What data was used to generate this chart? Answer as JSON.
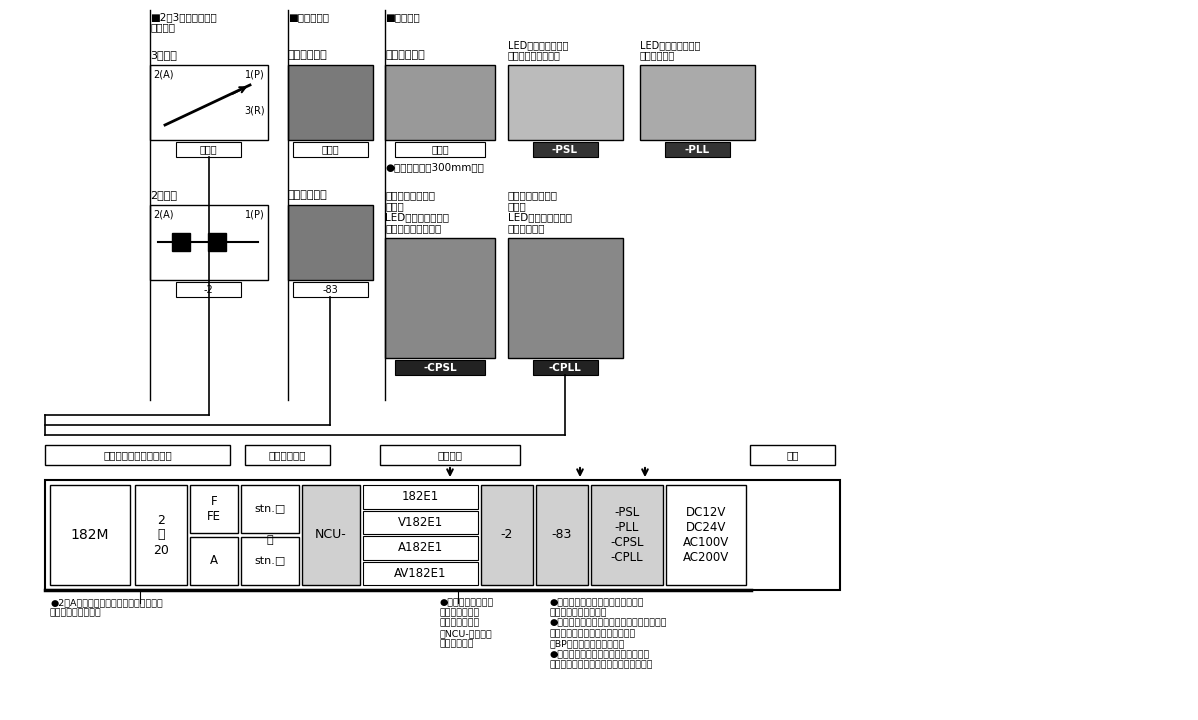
{
  "bg_color": "#ffffff",
  "header_valve": "■2・3ポートバルブ\nポート数",
  "header_manual": "■手動ボタン",
  "header_wiring": "■結線方式",
  "label_3port": "3ポート",
  "label_nonlock": "ノンロック形",
  "label_grommet": "グロメット形",
  "label_led_straight": "LEDインジケータ付\nストレートコネクタ",
  "label_led_elbow": "LEDインジケータ付\nエルコネクタ",
  "code_mukiryu": "無記入",
  "code_psl": "-PSL",
  "code_pll": "-PLL",
  "lead_note": "●リード線長さ300mm標準",
  "label_2port": "2ポート",
  "label_lock": "ロック突出形",
  "label_cpsl": "プラスコモン端子\n結線済\nLEDインジケータ付\nストレートコネクタ",
  "label_cpll": "プラスコモン端子\n結線済\nLEDインジケータ付\nエルコネクタ",
  "code_minus2": "-2",
  "code_minus83": "-83",
  "code_cpsl": "-CPSL",
  "code_cpll": "-CPLL",
  "bottom_manifold_label": "マニホールド形式\n連数",
  "bottom_station_label": "ステーション",
  "bottom_basic_label": "基本形式",
  "bottom_voltage_label": "電圧",
  "box_182M": "182M",
  "box_num": "2\n：\n20",
  "box_fe": "F\nFE",
  "box_a": "A",
  "box_stn1": "stn.□",
  "box_stn2": "stn.□",
  "box_ncu": "NCU-",
  "basic_models": [
    "182E1",
    "V182E1",
    "A182E1",
    "AV182E1"
  ],
  "box_minus2": "-2",
  "box_minus83": "-83",
  "box_wiring": "-PSL\n-PLL\n-CPSL\n-CPLL",
  "box_voltage": "DC12V\nDC24V\nAC100V\nAC200V",
  "fn1": "●2（A）ポート側を手前にして左からの\n　バルブ取付位置。",
  "fn2_bullet": "●ノン・イオン仕様\nを注文する場合\nは基本形式の前\nにNCU-を記入し\nてください。",
  "fn3": "●バルブ形式は、ステーション毎に\n　指定してください。\n●ステーションにバルブを取付けずに、プロ\n　ックプレートで閉止するときは\n　BPと記入してください。\n●正圧用と真空用は、マニホールドは\n　共通ですが、混合取付はできません。",
  "port3_A": "2(A)",
  "port3_P": "1(P)",
  "port3_R": "3(R)",
  "port2_A": "2(A)",
  "port2_P": "1(P)"
}
